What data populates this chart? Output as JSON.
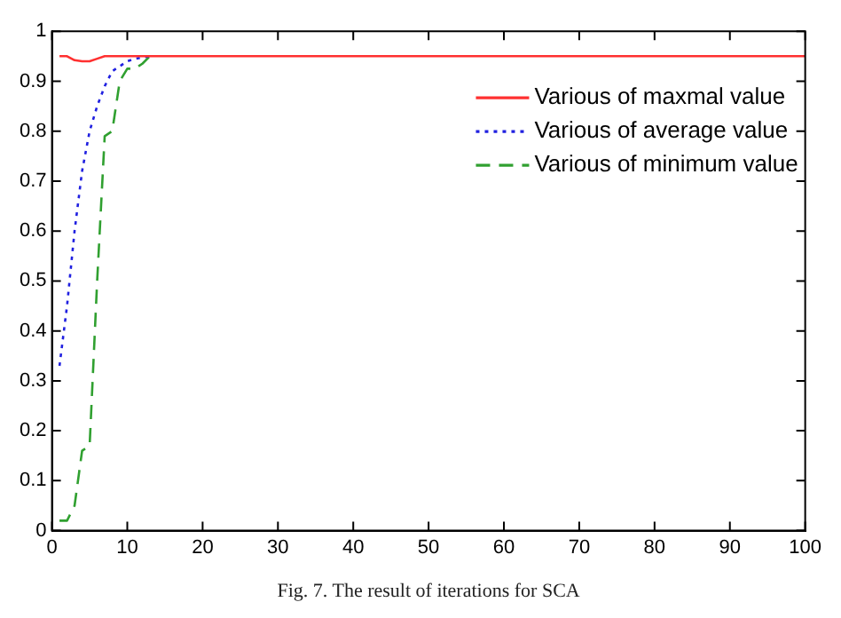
{
  "chart_data": {
    "type": "line",
    "annotations": [
      "Fig. 7. The result of iterations for SCA"
    ],
    "xlim": [
      0,
      100
    ],
    "xticks": [
      0,
      10,
      20,
      30,
      40,
      50,
      60,
      70,
      80,
      90,
      100
    ],
    "ylim": [
      0,
      1
    ],
    "yticks": [
      0,
      0.1,
      0.2,
      0.3,
      0.4,
      0.5,
      0.6,
      0.7,
      0.8,
      0.9,
      1
    ],
    "grid": false,
    "legend": "top right",
    "marker": "none",
    "series": [
      {
        "name": "Various of maxmal value",
        "color": "#ff3030",
        "line_style": "solid",
        "x": [
          1,
          2,
          3,
          4,
          5,
          6,
          7,
          10,
          20,
          100
        ],
        "values": [
          0.95,
          0.95,
          0.942,
          0.94,
          0.94,
          0.945,
          0.95,
          0.95,
          0.95,
          0.95
        ]
      },
      {
        "name": "Various of average value",
        "color": "#2020e0",
        "line_style": "dotted",
        "x": [
          1,
          2,
          3,
          4,
          5,
          6,
          7,
          8,
          9,
          10,
          11,
          13
        ],
        "values": [
          0.33,
          0.45,
          0.6,
          0.72,
          0.8,
          0.85,
          0.89,
          0.92,
          0.93,
          0.94,
          0.945,
          0.95
        ]
      },
      {
        "name": "Various of minimum value",
        "color": "#30a030",
        "line_style": "dashed",
        "x": [
          1,
          2,
          3,
          4,
          5,
          6,
          7,
          8,
          9,
          10,
          11,
          12,
          13
        ],
        "values": [
          0.02,
          0.02,
          0.05,
          0.16,
          0.17,
          0.5,
          0.79,
          0.8,
          0.9,
          0.925,
          0.925,
          0.935,
          0.95
        ]
      }
    ]
  }
}
